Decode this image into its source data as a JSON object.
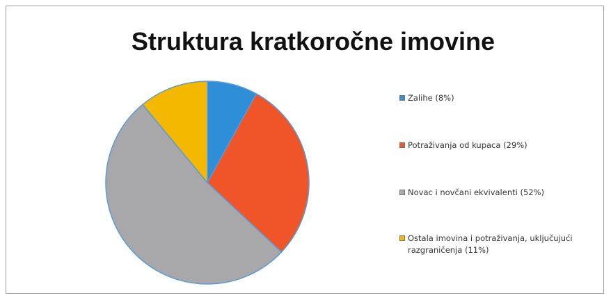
{
  "chart_data": {
    "type": "pie",
    "title": "Struktura kratkoročne imovine",
    "categories": [
      "Zalihe (8%)",
      "Potraživanja od kupaca (29%)",
      "Novac i novčani ekvivalenti (52%)",
      "Ostala imovina i potraživanja, uključujući razgraničenja (11%)"
    ],
    "values": [
      8,
      29,
      52,
      11
    ],
    "colors": [
      "#2e8fd8",
      "#f0552a",
      "#a8a8aa",
      "#f5b800"
    ],
    "legend": "right"
  }
}
